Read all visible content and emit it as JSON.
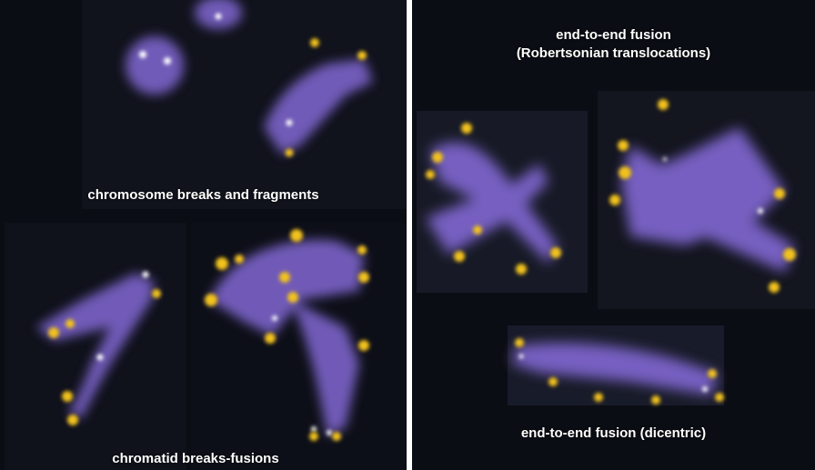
{
  "left_panel": {
    "top_caption": "chromosome breaks and fragments",
    "bottom_caption": "chromatid breaks-fusions"
  },
  "right_panel": {
    "top_caption_line1": "end-to-end fusion",
    "top_caption_line2": "(Robertsonian translocations)",
    "bottom_caption": "end-to-end fusion (dicentric)"
  },
  "colors": {
    "background": "#0b0d14",
    "chromosome": "#7c63c9",
    "telomere_signal": "#f2c21a",
    "caption": "#ffffff"
  }
}
